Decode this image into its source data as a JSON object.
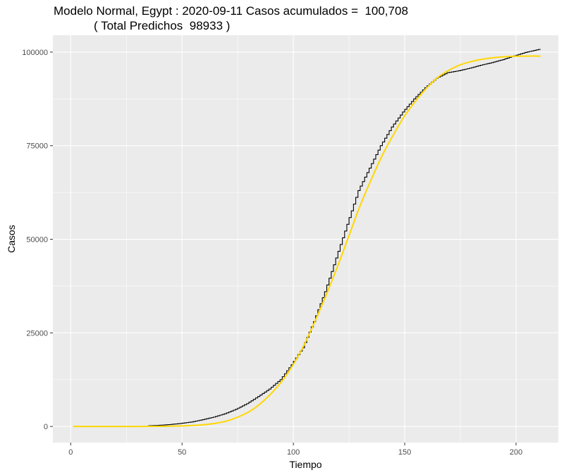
{
  "chart_data": {
    "type": "line",
    "title": "Modelo Normal, Egypt : 2020-09-11 Casos acumulados =  100,708",
    "subtitle": "( Total Predichos  98933 )",
    "xlabel": "Tiempo",
    "ylabel": "Casos",
    "xlim": [
      -8,
      219
    ],
    "ylim": [
      -4300,
      104500
    ],
    "xticks": [
      0,
      50,
      100,
      150,
      200
    ],
    "yticks": [
      0,
      25000,
      50000,
      75000,
      100000
    ],
    "xtick_labels": [
      "0",
      "50",
      "100",
      "150",
      "200"
    ],
    "ytick_labels": [
      "0",
      "25000",
      "50000",
      "75000",
      "100000"
    ],
    "grid": true,
    "background": "#ebebeb",
    "series": [
      {
        "style": "step",
        "color": "#000000",
        "x": [
          35,
          40,
          45,
          50,
          55,
          60,
          65,
          70,
          75,
          80,
          85,
          90,
          95,
          100,
          105,
          110,
          115,
          120,
          125,
          130,
          135,
          140,
          145,
          150,
          155,
          160,
          165,
          170,
          175,
          180,
          185,
          190,
          195,
          200,
          205,
          211
        ],
        "y": [
          200,
          300,
          500,
          800,
          1200,
          1800,
          2500,
          3400,
          4600,
          6100,
          8000,
          10000,
          12500,
          16500,
          21000,
          28000,
          36000,
          45000,
          54000,
          63000,
          69000,
          75000,
          80000,
          84000,
          87500,
          90500,
          93000,
          94500,
          95000,
          95700,
          96500,
          97200,
          98000,
          99000,
          99900,
          100708
        ]
      },
      {
        "style": "line",
        "color": "#ffd700",
        "x": [
          1,
          10,
          20,
          30,
          40,
          50,
          55,
          60,
          65,
          70,
          75,
          80,
          85,
          90,
          95,
          100,
          105,
          110,
          115,
          120,
          125,
          130,
          135,
          140,
          145,
          150,
          155,
          160,
          165,
          170,
          175,
          180,
          185,
          190,
          195,
          200,
          205,
          211
        ],
        "y": [
          0,
          0,
          0,
          0,
          50,
          150,
          280,
          480,
          850,
          1450,
          2500,
          3900,
          6000,
          8800,
          12200,
          16600,
          22000,
          28500,
          35500,
          43000,
          51000,
          59000,
          66000,
          72500,
          78000,
          83000,
          87000,
          90500,
          93300,
          95200,
          96600,
          97500,
          98100,
          98500,
          98750,
          98900,
          98933,
          98933
        ]
      }
    ]
  }
}
